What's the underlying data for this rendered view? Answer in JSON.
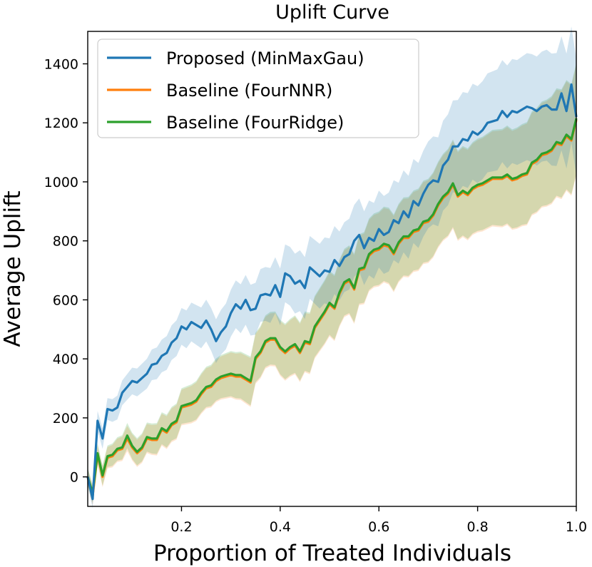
{
  "chart_data": {
    "type": "line",
    "title": "Uplift Curve",
    "xlabel": "Proportion of Treated Individuals",
    "ylabel": "Average Uplift",
    "xlim": [
      0.01,
      1.0
    ],
    "ylim": [
      -100,
      1510
    ],
    "xticks": [
      0.2,
      0.4,
      0.6,
      0.8,
      1.0
    ],
    "xtick_labels": [
      "0.2",
      "0.4",
      "0.6",
      "0.8",
      "1.0"
    ],
    "yticks": [
      0,
      200,
      400,
      600,
      800,
      1000,
      1200,
      1400
    ],
    "ytick_labels": [
      "0",
      "200",
      "400",
      "600",
      "800",
      "1000",
      "1200",
      "1400"
    ],
    "grid": false,
    "legend_position": "top-left",
    "x": [
      0.01,
      0.02,
      0.03,
      0.04,
      0.05,
      0.06,
      0.07,
      0.08,
      0.09,
      0.1,
      0.11,
      0.12,
      0.13,
      0.14,
      0.15,
      0.16,
      0.17,
      0.18,
      0.19,
      0.2,
      0.21,
      0.22,
      0.23,
      0.24,
      0.25,
      0.26,
      0.27,
      0.28,
      0.29,
      0.3,
      0.31,
      0.32,
      0.33,
      0.34,
      0.35,
      0.36,
      0.37,
      0.38,
      0.39,
      0.4,
      0.41,
      0.42,
      0.43,
      0.44,
      0.45,
      0.46,
      0.47,
      0.48,
      0.49,
      0.5,
      0.51,
      0.52,
      0.53,
      0.54,
      0.55,
      0.56,
      0.57,
      0.58,
      0.59,
      0.6,
      0.61,
      0.62,
      0.63,
      0.64,
      0.65,
      0.66,
      0.67,
      0.68,
      0.69,
      0.7,
      0.71,
      0.72,
      0.73,
      0.74,
      0.75,
      0.76,
      0.77,
      0.78,
      0.79,
      0.8,
      0.81,
      0.82,
      0.83,
      0.84,
      0.85,
      0.86,
      0.87,
      0.88,
      0.89,
      0.9,
      0.91,
      0.92,
      0.93,
      0.94,
      0.95,
      0.96,
      0.97,
      0.98,
      0.99,
      1.0
    ],
    "series": [
      {
        "name": "Proposed (MinMaxGau)",
        "color": "#1f77b4",
        "values": [
          0,
          -75,
          190,
          130,
          230,
          225,
          235,
          285,
          305,
          325,
          320,
          335,
          350,
          380,
          385,
          410,
          420,
          455,
          470,
          510,
          500,
          525,
          515,
          505,
          530,
          500,
          460,
          490,
          510,
          555,
          585,
          570,
          600,
          565,
          570,
          615,
          620,
          615,
          650,
          610,
          690,
          680,
          655,
          665,
          640,
          710,
          695,
          680,
          700,
          695,
          735,
          715,
          745,
          755,
          800,
          820,
          775,
          810,
          800,
          840,
          820,
          830,
          870,
          860,
          900,
          880,
          935,
          920,
          960,
          990,
          1005,
          1000,
          1055,
          1075,
          1120,
          1120,
          1145,
          1140,
          1170,
          1160,
          1175,
          1200,
          1205,
          1210,
          1240,
          1220,
          1240,
          1235,
          1245,
          1255,
          1250,
          1240,
          1255,
          1260,
          1245,
          1245,
          1300,
          1240,
          1330,
          1220
        ]
      },
      {
        "name": "Baseline (FourNNR)",
        "color": "#ff7f0e",
        "values": [
          0,
          -65,
          75,
          0,
          65,
          70,
          90,
          95,
          130,
          100,
          80,
          95,
          130,
          125,
          125,
          160,
          150,
          175,
          185,
          235,
          240,
          245,
          255,
          280,
          300,
          305,
          325,
          335,
          340,
          345,
          340,
          340,
          330,
          320,
          400,
          420,
          455,
          465,
          465,
          435,
          420,
          435,
          445,
          420,
          455,
          450,
          505,
          530,
          555,
          585,
          570,
          620,
          655,
          665,
          635,
          700,
          705,
          750,
          765,
          770,
          785,
          780,
          755,
          790,
          810,
          810,
          830,
          835,
          860,
          865,
          885,
          920,
          945,
          960,
          990,
          950,
          965,
          955,
          975,
          985,
          990,
          1000,
          1010,
          1010,
          1010,
          1020,
          1005,
          1010,
          1020,
          1025,
          1060,
          1070,
          1090,
          1095,
          1105,
          1130,
          1125,
          1155,
          1140,
          1210
        ]
      },
      {
        "name": "Baseline (FourRidge)",
        "color": "#2ca02c",
        "values": [
          0,
          -55,
          80,
          5,
          70,
          75,
          95,
          100,
          140,
          105,
          85,
          100,
          135,
          130,
          130,
          165,
          155,
          180,
          190,
          240,
          245,
          250,
          260,
          285,
          305,
          310,
          330,
          340,
          345,
          350,
          345,
          345,
          335,
          325,
          405,
          425,
          460,
          470,
          470,
          440,
          425,
          440,
          450,
          425,
          460,
          455,
          510,
          535,
          560,
          590,
          575,
          625,
          660,
          670,
          640,
          705,
          710,
          755,
          770,
          775,
          790,
          785,
          760,
          795,
          815,
          815,
          835,
          840,
          865,
          870,
          890,
          925,
          950,
          965,
          995,
          955,
          970,
          960,
          980,
          990,
          995,
          1005,
          1015,
          1015,
          1015,
          1025,
          1010,
          1015,
          1025,
          1030,
          1065,
          1075,
          1095,
          1100,
          1110,
          1135,
          1130,
          1160,
          1145,
          1215
        ]
      }
    ]
  }
}
